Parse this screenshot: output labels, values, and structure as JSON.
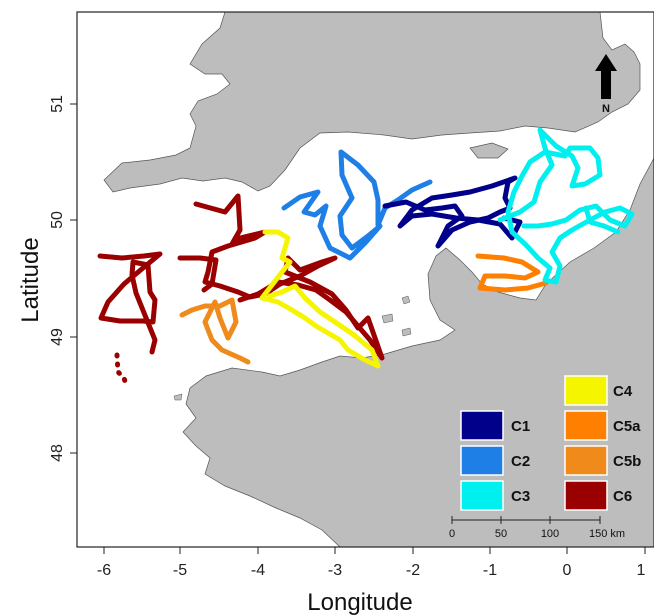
{
  "axes": {
    "xlabel": "Longitude",
    "ylabel": "Latitude",
    "x_ticks": [
      "-6",
      "-5",
      "-4",
      "-3",
      "-2",
      "-1",
      "0",
      "1"
    ],
    "y_ticks": [
      "48",
      "49",
      "50",
      "51"
    ]
  },
  "north_arrow": {
    "label": "N"
  },
  "scale_bar": {
    "labels": [
      "0",
      "50",
      "100",
      "150 km"
    ]
  },
  "legend": {
    "items": [
      {
        "label": "C1",
        "color": "#00008b"
      },
      {
        "label": "C2",
        "color": "#1e7fe6"
      },
      {
        "label": "C3",
        "color": "#00f0f0"
      },
      {
        "label": "C4",
        "color": "#f5f500"
      },
      {
        "label": "C5a",
        "color": "#ff7f00"
      },
      {
        "label": "C5b",
        "color": "#f08a1a"
      },
      {
        "label": "C6",
        "color": "#9b0000"
      }
    ]
  },
  "colors": {
    "land": "#bdbdbd",
    "sea": "#ffffff"
  }
}
